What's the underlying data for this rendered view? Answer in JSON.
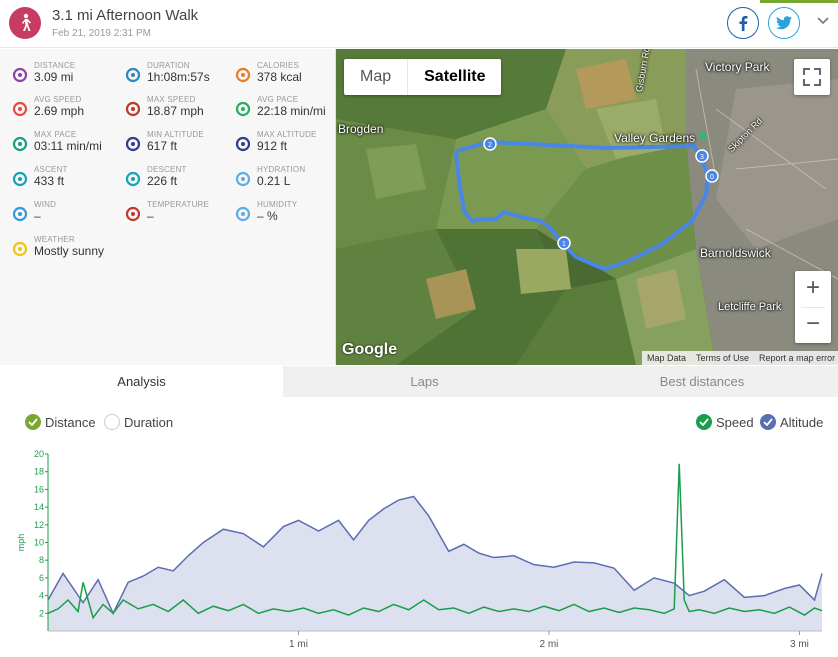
{
  "header": {
    "title": "3.1 mi Afternoon Walk",
    "date": "Feb 21, 2019 2:31 PM"
  },
  "stats": [
    {
      "label": "DISTANCE",
      "value": "3.09 mi",
      "icon": "distance-icon",
      "color": "#8e44ad"
    },
    {
      "label": "DURATION",
      "value": "1h:08m:57s",
      "icon": "stopwatch-icon",
      "color": "#2e86c1"
    },
    {
      "label": "CALORIES",
      "value": "378 kcal",
      "icon": "flame-icon",
      "color": "#e67e22"
    },
    {
      "label": "AVG SPEED",
      "value": "2.69 mph",
      "icon": "speedometer-icon",
      "color": "#e74c3c"
    },
    {
      "label": "MAX SPEED",
      "value": "18.87 mph",
      "icon": "speedometer-max-icon",
      "color": "#c0392b"
    },
    {
      "label": "AVG PACE",
      "value": "22:18 min/mi",
      "icon": "pace-icon",
      "color": "#27ae60"
    },
    {
      "label": "MAX PACE",
      "value": "03:11 min/mi",
      "icon": "max-pace-icon",
      "color": "#16a085"
    },
    {
      "label": "MIN ALTITUDE",
      "value": "617 ft",
      "icon": "mountain-low-icon",
      "color": "#2c3e8a"
    },
    {
      "label": "MAX ALTITUDE",
      "value": "912 ft",
      "icon": "mountain-high-icon",
      "color": "#2c3e8a"
    },
    {
      "label": "ASCENT",
      "value": "433 ft",
      "icon": "ascent-icon",
      "color": "#17a2b8"
    },
    {
      "label": "DESCENT",
      "value": "226 ft",
      "icon": "descent-icon",
      "color": "#17a2b8"
    },
    {
      "label": "HYDRATION",
      "value": "0.21 L",
      "icon": "water-drop-icon",
      "color": "#5dade2"
    },
    {
      "label": "WIND",
      "value": "–",
      "icon": "wind-icon",
      "color": "#3498db"
    },
    {
      "label": "TEMPERATURE",
      "value": "–",
      "icon": "thermometer-icon",
      "color": "#c0392b"
    },
    {
      "label": "HUMIDITY",
      "value": "– %",
      "icon": "humidity-icon",
      "color": "#5dade2"
    },
    {
      "label": "WEATHER",
      "value": "Mostly sunny",
      "icon": "sun-icon",
      "color": "#f1c40f"
    }
  ],
  "map": {
    "toggle": {
      "map": "Map",
      "satellite": "Satellite"
    },
    "labels": [
      "Victory Park",
      "Brogden",
      "Valley Gardens",
      "Barnoldswick",
      "Letcliffe Park",
      "Gisburn Rd",
      "Skipton Rd"
    ],
    "waypoints": [
      "1",
      "2",
      "3",
      "0"
    ],
    "google": "Google",
    "footer": {
      "data": "Map Data",
      "terms": "Terms of Use",
      "report": "Report a map error"
    },
    "zoom_in": "+",
    "zoom_out": "−"
  },
  "tabs": [
    {
      "label": "Analysis",
      "active": true
    },
    {
      "label": "Laps",
      "active": false
    },
    {
      "label": "Best distances",
      "active": false
    }
  ],
  "chart_controls": {
    "distance": "Distance",
    "duration": "Duration",
    "speed": "Speed",
    "altitude": "Altitude"
  },
  "chart_data": {
    "type": "line",
    "ylabel": "mph",
    "ylim": [
      0,
      20
    ],
    "yticks": [
      2,
      4,
      6,
      8,
      10,
      12,
      14,
      16,
      18,
      20
    ],
    "xlim": [
      0,
      3.09
    ],
    "xticks": [
      {
        "value": 1,
        "label": "1 mi"
      },
      {
        "value": 2,
        "label": "2 mi"
      },
      {
        "value": 3,
        "label": "3 mi"
      }
    ],
    "series": [
      {
        "name": "Altitude",
        "color": "#5b6fb0",
        "fill": "#dde0ee",
        "x": [
          0,
          0.06,
          0.14,
          0.2,
          0.26,
          0.32,
          0.38,
          0.44,
          0.5,
          0.56,
          0.62,
          0.7,
          0.78,
          0.86,
          0.94,
          1.0,
          1.08,
          1.16,
          1.22,
          1.28,
          1.34,
          1.4,
          1.46,
          1.52,
          1.6,
          1.66,
          1.72,
          1.78,
          1.86,
          1.94,
          2.02,
          2.1,
          2.18,
          2.26,
          2.34,
          2.42,
          2.5,
          2.56,
          2.62,
          2.7,
          2.78,
          2.86,
          2.94,
          3.0,
          3.06,
          3.09
        ],
        "y": [
          3.5,
          6.5,
          3.2,
          5.8,
          2.0,
          5.5,
          6.2,
          7.2,
          6.8,
          8.5,
          10.0,
          11.5,
          11.0,
          9.5,
          11.8,
          12.5,
          11.3,
          12.5,
          10.3,
          12.5,
          13.8,
          14.8,
          15.2,
          13.0,
          9.0,
          9.8,
          8.8,
          8.3,
          8.5,
          7.5,
          7.2,
          7.8,
          7.7,
          7.1,
          4.6,
          6.0,
          5.4,
          4.0,
          4.5,
          5.8,
          3.8,
          4.0,
          4.8,
          5.2,
          3.5,
          6.5
        ]
      },
      {
        "name": "Speed",
        "color": "#1b9e4b",
        "x": [
          0,
          0.04,
          0.08,
          0.12,
          0.14,
          0.18,
          0.22,
          0.26,
          0.3,
          0.36,
          0.42,
          0.48,
          0.54,
          0.6,
          0.66,
          0.72,
          0.78,
          0.84,
          0.9,
          0.96,
          1.02,
          1.08,
          1.14,
          1.2,
          1.26,
          1.32,
          1.38,
          1.44,
          1.5,
          1.56,
          1.62,
          1.68,
          1.74,
          1.8,
          1.86,
          1.92,
          1.98,
          2.04,
          2.1,
          2.16,
          2.22,
          2.28,
          2.34,
          2.4,
          2.46,
          2.5,
          2.52,
          2.54,
          2.56,
          2.6,
          2.66,
          2.72,
          2.78,
          2.84,
          2.9,
          2.96,
          3.02,
          3.06,
          3.09
        ],
        "y": [
          2.0,
          2.5,
          3.5,
          2.2,
          5.5,
          1.5,
          3.0,
          2.0,
          3.5,
          2.5,
          3.0,
          2.2,
          3.5,
          2.0,
          2.8,
          2.3,
          3.0,
          2.0,
          2.5,
          2.2,
          2.6,
          2.0,
          2.4,
          1.8,
          2.6,
          2.2,
          3.0,
          2.4,
          3.5,
          2.4,
          2.6,
          2.0,
          2.7,
          2.2,
          2.5,
          2.2,
          2.8,
          2.3,
          3.0,
          2.2,
          2.6,
          2.1,
          2.6,
          2.4,
          2.0,
          2.5,
          18.9,
          3.5,
          2.2,
          2.4,
          2.0,
          2.6,
          2.2,
          2.4,
          2.0,
          2.7,
          1.8,
          2.6,
          2.3
        ]
      }
    ]
  }
}
